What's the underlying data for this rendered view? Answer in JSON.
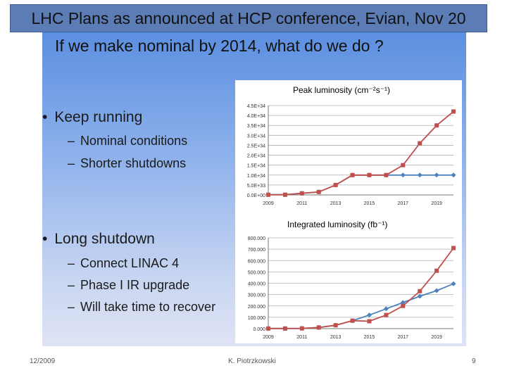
{
  "header": {
    "title": "LHC Plans as announced at HCP conference, Evian, Nov 20",
    "subtitle": "If we make nominal by 2014, what do we do ?"
  },
  "bullets": {
    "keep_running": {
      "label": "Keep running",
      "items": [
        "Nominal conditions",
        "Shorter shutdowns"
      ]
    },
    "long_shutdown": {
      "label": "Long shutdown",
      "items": [
        "Connect LINAC 4",
        "Phase I IR upgrade",
        "Will take time to recover"
      ]
    }
  },
  "chart_data": [
    {
      "type": "line",
      "title": "Peak luminosity (cm⁻²s⁻¹)",
      "x": [
        2009,
        2010,
        2011,
        2012,
        2013,
        2014,
        2015,
        2016,
        2017,
        2018,
        2019,
        2020
      ],
      "xticks": [
        "2009",
        "2011",
        "2013",
        "2015",
        "2017",
        "2019"
      ],
      "yticks": [
        "0.0E+00",
        "5.0E+33",
        "1.0E+34",
        "1.5E+34",
        "2.0E+34",
        "2.5E+34",
        "3.0E+34",
        "3.5E+34",
        "4.0E+34",
        "4.5E+34"
      ],
      "ylim": [
        0,
        4.5e+34
      ],
      "grid": true,
      "series": [
        {
          "color": "#4f81bd",
          "marker": "diamond",
          "values": [
            1e+32,
            1e+32,
            8e+32,
            1.5e+33,
            5e+33,
            1e+34,
            1e+34,
            1e+34,
            1e+34,
            1e+34,
            1e+34,
            1e+34
          ]
        },
        {
          "color": "#c0504d",
          "marker": "square",
          "values": [
            1e+32,
            1e+32,
            8e+32,
            1.5e+33,
            5e+33,
            1e+34,
            1e+34,
            1e+34,
            1.5e+34,
            2.6e+34,
            3.5e+34,
            4.2e+34
          ]
        }
      ]
    },
    {
      "type": "line",
      "title": "Integrated luminosity (fb⁻¹)",
      "x": [
        2009,
        2010,
        2011,
        2012,
        2013,
        2014,
        2015,
        2016,
        2017,
        2018,
        2019,
        2020
      ],
      "xticks": [
        "2009",
        "2011",
        "2013",
        "2015",
        "2017",
        "2019"
      ],
      "yticks": [
        "0.000",
        "100.000",
        "200.000",
        "300.000",
        "400.000",
        "500.000",
        "600.000",
        "700.000",
        "800.000"
      ],
      "ylim": [
        0,
        800
      ],
      "grid": true,
      "series": [
        {
          "color": "#4f81bd",
          "marker": "diamond",
          "values": [
            1,
            1,
            2,
            10,
            30,
            70,
            120,
            175,
            230,
            285,
            335,
            395
          ]
        },
        {
          "color": "#c0504d",
          "marker": "square",
          "values": [
            1,
            1,
            2,
            10,
            30,
            70,
            65,
            120,
            200,
            330,
            510,
            710
          ]
        }
      ]
    }
  ],
  "footer": {
    "date": "12/2009",
    "author": "K. Piotrzkowski",
    "page": "9"
  }
}
